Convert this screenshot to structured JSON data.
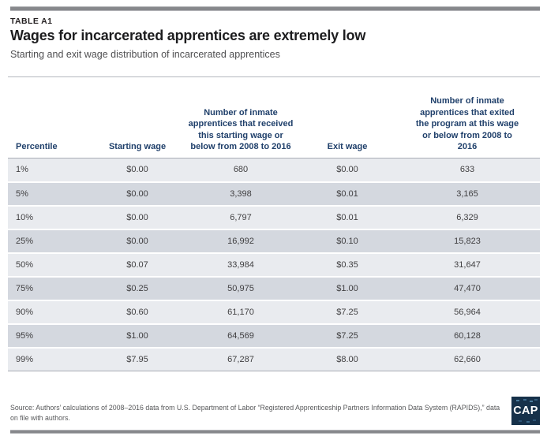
{
  "table_label": "TABLE A1",
  "title": "Wages for incarcerated apprentices are extremely low",
  "subtitle": "Starting and exit wage distribution of incarcerated apprentices",
  "table": {
    "columns": [
      "Percentile",
      "Starting wage",
      "Number of inmate apprentices that received this starting wage or below from 2008 to 2016",
      "Exit wage",
      "Number of inmate apprentices that exited the program at this wage or below from 2008 to 2016"
    ],
    "rows": [
      [
        "1%",
        "$0.00",
        "680",
        "$0.00",
        "633"
      ],
      [
        "5%",
        "$0.00",
        "3,398",
        "$0.01",
        "3,165"
      ],
      [
        "10%",
        "$0.00",
        "6,797",
        "$0.01",
        "6,329"
      ],
      [
        "25%",
        "$0.00",
        "16,992",
        "$0.10",
        "15,823"
      ],
      [
        "50%",
        "$0.07",
        "33,984",
        "$0.35",
        "31,647"
      ],
      [
        "75%",
        "$0.25",
        "50,975",
        "$1.00",
        "47,470"
      ],
      [
        "90%",
        "$0.60",
        "61,170",
        "$7.25",
        "56,964"
      ],
      [
        "95%",
        "$1.00",
        "64,569",
        "$7.25",
        "60,128"
      ],
      [
        "99%",
        "$7.95",
        "67,287",
        "$8.00",
        "62,660"
      ]
    ]
  },
  "footer": {
    "source": "Source: Authors’ calculations of 2008–2016 data from U.S. Department of Labor “Registered Apprenticeship Partners Information Data System (RAPIDS),” data on file with authors.",
    "logo_text": "CAP"
  },
  "colors": {
    "header_text": "#20406b",
    "row_light": "#e9ebef",
    "row_dark": "#d4d8df",
    "divider_gray": "#87888c",
    "logo_background": "#16314a"
  },
  "chart_data": {
    "type": "table",
    "title": "Wages for incarcerated apprentices are extremely low",
    "subtitle": "Starting and exit wage distribution of incarcerated apprentices",
    "categories": [
      "1%",
      "5%",
      "10%",
      "25%",
      "50%",
      "75%",
      "90%",
      "95%",
      "99%"
    ],
    "series": [
      {
        "name": "Starting wage",
        "values": [
          "$0.00",
          "$0.00",
          "$0.00",
          "$0.00",
          "$0.07",
          "$0.25",
          "$0.60",
          "$1.00",
          "$7.95"
        ]
      },
      {
        "name": "Number of inmate apprentices that received this starting wage or below from 2008 to 2016",
        "values": [
          680,
          3398,
          6797,
          16992,
          33984,
          50975,
          61170,
          64569,
          67287
        ]
      },
      {
        "name": "Exit wage",
        "values": [
          "$0.00",
          "$0.01",
          "$0.01",
          "$0.10",
          "$0.35",
          "$1.00",
          "$7.25",
          "$7.25",
          "$8.00"
        ]
      },
      {
        "name": "Number of inmate apprentices that exited the program at this wage or below from 2008 to 2016",
        "values": [
          633,
          3165,
          6329,
          15823,
          31647,
          47470,
          56964,
          60128,
          62660
        ]
      }
    ],
    "source": "Source: Authors’ calculations of 2008–2016 data from U.S. Department of Labor “Registered Apprenticeship Partners Information Data System (RAPIDS),” data on file with authors."
  }
}
